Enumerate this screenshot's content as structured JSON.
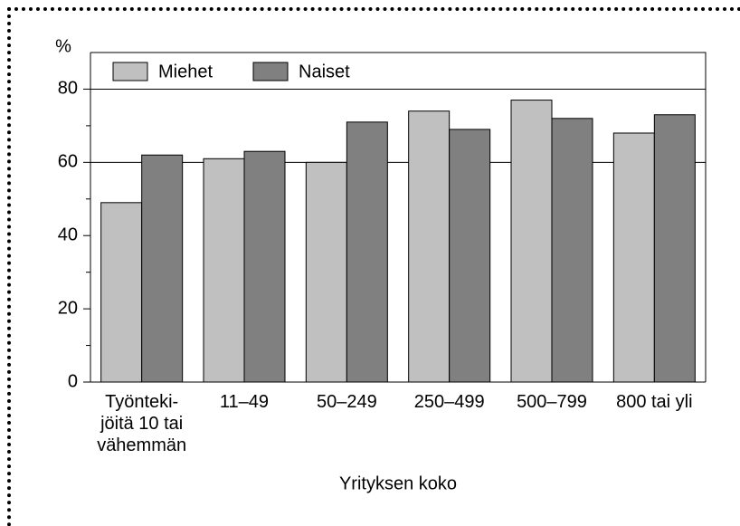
{
  "chart_data": {
    "type": "bar",
    "y_unit": "%",
    "x_axis_label": "Yrityksen koko",
    "categories": [
      "Työnteki-\njöitä 10 tai\nvähemmän",
      "11–49",
      "50–249",
      "250–499",
      "500–799",
      "800 tai yli"
    ],
    "series": [
      {
        "name": "Miehet",
        "color": "#c0c0c0",
        "values": [
          49,
          61,
          60,
          74,
          77,
          68
        ]
      },
      {
        "name": "Naiset",
        "color": "#808080",
        "values": [
          62,
          63,
          71,
          69,
          72,
          73
        ]
      }
    ],
    "ylim": [
      0,
      90
    ],
    "yticks": [
      0,
      20,
      40,
      60,
      80
    ],
    "yminorticks": [
      10,
      30,
      50,
      70
    ],
    "gridlines": [
      60,
      80
    ],
    "legend": "top-left"
  }
}
